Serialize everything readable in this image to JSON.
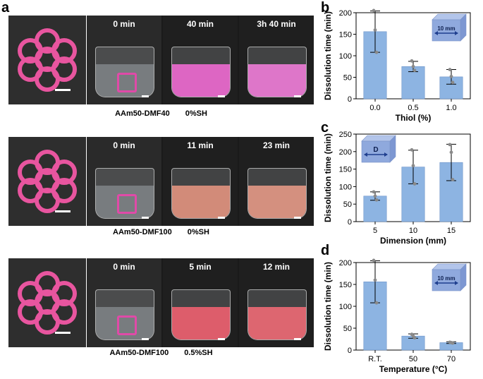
{
  "panel_letters": [
    "a",
    "b",
    "c",
    "d"
  ],
  "rows": [
    {
      "label": "AAm50-DMF40",
      "thiol": "0%SH",
      "times": [
        "0 min",
        "40 min",
        "3h 40 min"
      ],
      "liquid_colors": [
        "#cfd8de",
        "#ee6ad2",
        "#f07cd8"
      ]
    },
    {
      "label": "AAm50-DMF100",
      "thiol": "0%SH",
      "times": [
        "0 min",
        "11 min",
        "23 min"
      ],
      "liquid_colors": [
        "#cfd8de",
        "#e2937f",
        "#e49986"
      ]
    },
    {
      "label": "AAm50-DMF100",
      "thiol": "0.5%SH",
      "times": [
        "0 min",
        "5 min",
        "12 min"
      ],
      "liquid_colors": [
        "#cfd8de",
        "#ee6070",
        "#ee6a76"
      ]
    }
  ],
  "bar_color": "#8db4e2",
  "cube_color": "#8fa9dd",
  "chart_data": [
    {
      "panel": "b",
      "type": "bar",
      "categories": [
        "0.0",
        "0.5",
        "1.0"
      ],
      "values": [
        156,
        75,
        51
      ],
      "errors": [
        48,
        12,
        17
      ],
      "points": [
        [
          205,
          160,
          108
        ],
        [
          88,
          75,
          66
        ],
        [
          68,
          52,
          38
        ]
      ],
      "xlabel": "Thiol (%)",
      "ylabel": "Dissolution time (min)",
      "ylim": [
        0,
        200
      ],
      "yticks": [
        0,
        50,
        100,
        150,
        200
      ],
      "inset": "10 mm",
      "inset_pos": "top-right"
    },
    {
      "panel": "c",
      "type": "bar",
      "categories": [
        "5",
        "10",
        "15"
      ],
      "values": [
        73,
        156,
        169
      ],
      "errors": [
        12,
        48,
        52
      ],
      "points": [
        [
          85,
          73,
          62
        ],
        [
          205,
          160,
          108
        ],
        [
          220,
          198,
          120
        ]
      ],
      "xlabel": "Dimension (mm)",
      "ylabel": "Dissolution time (min)",
      "ylim": [
        0,
        250
      ],
      "yticks": [
        0,
        50,
        100,
        150,
        200,
        250
      ],
      "inset": "D",
      "inset_pos": "top-left"
    },
    {
      "panel": "d",
      "type": "bar",
      "categories": [
        "R.T.",
        "50",
        "70"
      ],
      "values": [
        156,
        32,
        17
      ],
      "errors": [
        48,
        5,
        2
      ],
      "points": [
        [
          205,
          160,
          108
        ],
        [
          36,
          32,
          28
        ],
        [
          18,
          17,
          16
        ]
      ],
      "xlabel": "Temperature (°C)",
      "ylabel": "Dissolution time (min)",
      "ylim": [
        0,
        200
      ],
      "yticks": [
        0,
        50,
        100,
        150,
        200
      ],
      "inset": "10 mm",
      "inset_pos": "top-right"
    }
  ]
}
